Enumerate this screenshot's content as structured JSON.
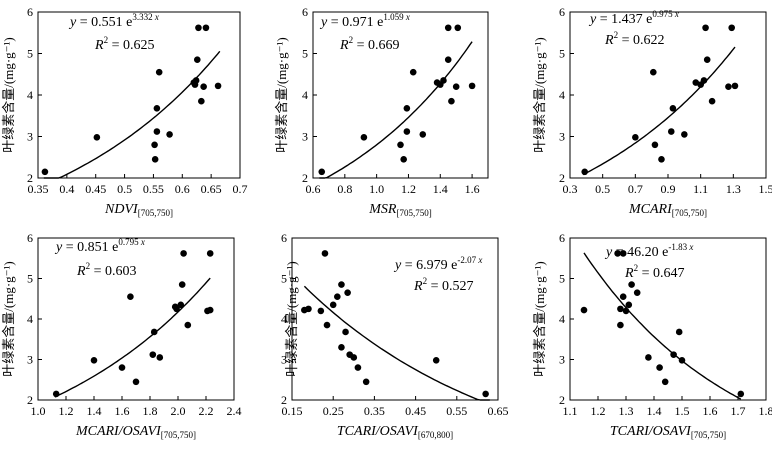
{
  "y_label": "叶绿素含量/(mg·g⁻¹)",
  "chart_data": [
    {
      "type": "scatter",
      "xlabel_main": "NDVI",
      "xlabel_sub": "[705,750]",
      "ylabel": "叶绿素含量/(mg·g⁻¹)",
      "xlim": [
        0.35,
        0.7
      ],
      "ylim": [
        2,
        6
      ],
      "xticks": [
        "0.35",
        "0.4",
        "0.45",
        "0.5",
        "0.55",
        "0.6",
        "0.65",
        "0.7"
      ],
      "yticks": [
        "2",
        "3",
        "4",
        "5",
        "6"
      ],
      "equation": "y = 0.551 e^(3.332x)",
      "eq_coef": "0.551",
      "eq_exp": "3.332",
      "r2_value": "0.625",
      "fit": {
        "a": 0.551,
        "b": 3.332,
        "x_range": [
          0.36,
          0.665
        ]
      },
      "points": [
        {
          "x": 0.362,
          "y": 2.15
        },
        {
          "x": 0.452,
          "y": 2.98
        },
        {
          "x": 0.552,
          "y": 2.8
        },
        {
          "x": 0.553,
          "y": 2.45
        },
        {
          "x": 0.556,
          "y": 3.12
        },
        {
          "x": 0.556,
          "y": 3.68
        },
        {
          "x": 0.56,
          "y": 4.55
        },
        {
          "x": 0.578,
          "y": 3.05
        },
        {
          "x": 0.62,
          "y": 4.3
        },
        {
          "x": 0.622,
          "y": 4.25
        },
        {
          "x": 0.624,
          "y": 4.35
        },
        {
          "x": 0.626,
          "y": 4.85
        },
        {
          "x": 0.628,
          "y": 5.62
        },
        {
          "x": 0.633,
          "y": 3.85
        },
        {
          "x": 0.637,
          "y": 4.2
        },
        {
          "x": 0.641,
          "y": 5.62
        },
        {
          "x": 0.662,
          "y": 4.22
        }
      ]
    },
    {
      "type": "scatter",
      "xlabel_main": "MSR",
      "xlabel_sub": "[705,750]",
      "ylabel": "",
      "xlim": [
        0.6,
        1.7
      ],
      "ylim": [
        2,
        6
      ],
      "xticks": [
        "0.6",
        "0.8",
        "1.0",
        "1.2",
        "1.4",
        "1.6"
      ],
      "yticks": [
        "2",
        "3",
        "4",
        "5",
        "6"
      ],
      "equation": "y = 0.971 e^(1.059x)",
      "eq_coef": "0.971",
      "eq_exp": "1.059",
      "r2_value": "0.669",
      "fit": {
        "a": 0.971,
        "b": 1.059,
        "x_range": [
          0.64,
          1.6
        ]
      },
      "points": [
        {
          "x": 0.655,
          "y": 2.15
        },
        {
          "x": 0.92,
          "y": 2.98
        },
        {
          "x": 1.15,
          "y": 2.8
        },
        {
          "x": 1.17,
          "y": 2.45
        },
        {
          "x": 1.19,
          "y": 3.12
        },
        {
          "x": 1.19,
          "y": 3.68
        },
        {
          "x": 1.23,
          "y": 4.55
        },
        {
          "x": 1.29,
          "y": 3.05
        },
        {
          "x": 1.38,
          "y": 4.3
        },
        {
          "x": 1.4,
          "y": 4.25
        },
        {
          "x": 1.42,
          "y": 4.35
        },
        {
          "x": 1.45,
          "y": 4.85
        },
        {
          "x": 1.45,
          "y": 5.62
        },
        {
          "x": 1.47,
          "y": 3.85
        },
        {
          "x": 1.5,
          "y": 4.2
        },
        {
          "x": 1.51,
          "y": 5.62
        },
        {
          "x": 1.6,
          "y": 4.22
        }
      ]
    },
    {
      "type": "scatter",
      "xlabel_main": "MCARI",
      "xlabel_sub": "[705,750]",
      "ylabel": "",
      "xlim": [
        0.3,
        1.5
      ],
      "ylim": [
        2,
        6
      ],
      "xticks": [
        "0.3",
        "0.5",
        "0.7",
        "0.9",
        "1.1",
        "1.3",
        "1.5"
      ],
      "yticks": [
        "2",
        "3",
        "4",
        "5",
        "6"
      ],
      "equation": "y = 1.437 e^(0.975x)",
      "eq_coef": "1.437",
      "eq_exp": "0.975",
      "r2_value": "0.622",
      "fit": {
        "a": 1.437,
        "b": 0.975,
        "x_range": [
          0.38,
          1.31
        ]
      },
      "points": [
        {
          "x": 0.39,
          "y": 2.15
        },
        {
          "x": 0.7,
          "y": 2.98
        },
        {
          "x": 0.81,
          "y": 4.55
        },
        {
          "x": 0.82,
          "y": 2.8
        },
        {
          "x": 0.86,
          "y": 2.45
        },
        {
          "x": 0.92,
          "y": 3.12
        },
        {
          "x": 0.93,
          "y": 3.68
        },
        {
          "x": 1.0,
          "y": 3.05
        },
        {
          "x": 1.07,
          "y": 4.3
        },
        {
          "x": 1.1,
          "y": 4.25
        },
        {
          "x": 1.12,
          "y": 4.35
        },
        {
          "x": 1.13,
          "y": 5.62
        },
        {
          "x": 1.14,
          "y": 4.85
        },
        {
          "x": 1.17,
          "y": 3.85
        },
        {
          "x": 1.27,
          "y": 4.2
        },
        {
          "x": 1.29,
          "y": 5.62
        },
        {
          "x": 1.31,
          "y": 4.22
        }
      ]
    },
    {
      "type": "scatter",
      "xlabel_main": "MCARI/OSAVI",
      "xlabel_sub": "[705,750]",
      "ylabel": "叶绿素含量/(mg·g⁻¹)",
      "xlim": [
        1.0,
        2.4
      ],
      "ylim": [
        2,
        6
      ],
      "xticks": [
        "1.0",
        "1.2",
        "1.4",
        "1.6",
        "1.8",
        "2.0",
        "2.2",
        "2.4"
      ],
      "yticks": [
        "2",
        "3",
        "4",
        "5",
        "6"
      ],
      "equation": "y = 0.851 e^(0.795x)",
      "eq_coef": "0.851",
      "eq_exp": "0.795",
      "r2_value": "0.603",
      "fit": {
        "a": 0.851,
        "b": 0.795,
        "x_range": [
          1.12,
          2.23
        ]
      },
      "points": [
        {
          "x": 1.13,
          "y": 2.15
        },
        {
          "x": 1.4,
          "y": 2.98
        },
        {
          "x": 1.6,
          "y": 2.8
        },
        {
          "x": 1.66,
          "y": 4.55
        },
        {
          "x": 1.7,
          "y": 2.45
        },
        {
          "x": 1.82,
          "y": 3.12
        },
        {
          "x": 1.83,
          "y": 3.68
        },
        {
          "x": 1.87,
          "y": 3.05
        },
        {
          "x": 1.98,
          "y": 4.3
        },
        {
          "x": 1.99,
          "y": 4.25
        },
        {
          "x": 2.02,
          "y": 4.35
        },
        {
          "x": 2.03,
          "y": 4.85
        },
        {
          "x": 2.04,
          "y": 5.62
        },
        {
          "x": 2.07,
          "y": 3.85
        },
        {
          "x": 2.21,
          "y": 4.2
        },
        {
          "x": 2.23,
          "y": 5.62
        },
        {
          "x": 2.23,
          "y": 4.22
        }
      ]
    },
    {
      "type": "scatter",
      "xlabel_main": "TCARI/OSAVI",
      "xlabel_sub": "[670,800]",
      "ylabel": "叶绿素含量/(mg·g⁻¹)",
      "xlim": [
        0.15,
        0.65
      ],
      "ylim": [
        2,
        6
      ],
      "xticks": [
        "0.15",
        "0.25",
        "0.35",
        "0.45",
        "0.55",
        "0.65"
      ],
      "yticks": [
        "2",
        "3",
        "4",
        "5",
        "6"
      ],
      "equation": "y = 6.979 e^(-2.07x)",
      "eq_coef": "6.979",
      "eq_exp": "-2.07",
      "r2_value": "0.527",
      "fit": {
        "a": 6.979,
        "b": -2.07,
        "x_range": [
          0.18,
          0.63
        ]
      },
      "points": [
        {
          "x": 0.18,
          "y": 4.22
        },
        {
          "x": 0.19,
          "y": 4.25
        },
        {
          "x": 0.22,
          "y": 4.2
        },
        {
          "x": 0.23,
          "y": 5.62
        },
        {
          "x": 0.235,
          "y": 3.85
        },
        {
          "x": 0.25,
          "y": 4.35
        },
        {
          "x": 0.26,
          "y": 4.55
        },
        {
          "x": 0.27,
          "y": 4.85
        },
        {
          "x": 0.28,
          "y": 3.68
        },
        {
          "x": 0.29,
          "y": 3.12
        },
        {
          "x": 0.3,
          "y": 3.05
        },
        {
          "x": 0.31,
          "y": 2.8
        },
        {
          "x": 0.33,
          "y": 2.45
        },
        {
          "x": 0.5,
          "y": 2.98
        },
        {
          "x": 0.62,
          "y": 2.15
        },
        {
          "x": 0.285,
          "y": 4.65
        },
        {
          "x": 0.27,
          "y": 3.3
        }
      ]
    },
    {
      "type": "scatter",
      "xlabel_main": "TCARI/OSAVI",
      "xlabel_sub": "[705,750]",
      "ylabel": "叶绿素含量/(mg·g⁻¹)",
      "xlim": [
        1.1,
        1.8
      ],
      "ylim": [
        2,
        6
      ],
      "xticks": [
        "1.1",
        "1.2",
        "1.3",
        "1.4",
        "1.5",
        "1.6",
        "1.7",
        "1.8"
      ],
      "yticks": [
        "2",
        "3",
        "4",
        "5",
        "6"
      ],
      "equation": "y = 46.20 e^(-1.83x)",
      "eq_coef": "46.20",
      "eq_exp": "-1.83",
      "r2_value": "0.647",
      "fit": {
        "a": 46.2,
        "b": -1.83,
        "x_range": [
          1.15,
          1.71
        ]
      },
      "points": [
        {
          "x": 1.15,
          "y": 4.22
        },
        {
          "x": 1.27,
          "y": 5.62
        },
        {
          "x": 1.28,
          "y": 4.25
        },
        {
          "x": 1.28,
          "y": 3.85
        },
        {
          "x": 1.29,
          "y": 4.55
        },
        {
          "x": 1.29,
          "y": 5.62
        },
        {
          "x": 1.3,
          "y": 4.2
        },
        {
          "x": 1.31,
          "y": 4.35
        },
        {
          "x": 1.32,
          "y": 4.85
        },
        {
          "x": 1.34,
          "y": 4.65
        },
        {
          "x": 1.38,
          "y": 3.05
        },
        {
          "x": 1.42,
          "y": 2.8
        },
        {
          "x": 1.44,
          "y": 2.45
        },
        {
          "x": 1.47,
          "y": 3.12
        },
        {
          "x": 1.49,
          "y": 3.68
        },
        {
          "x": 1.5,
          "y": 2.98
        },
        {
          "x": 1.71,
          "y": 2.15
        }
      ]
    }
  ]
}
